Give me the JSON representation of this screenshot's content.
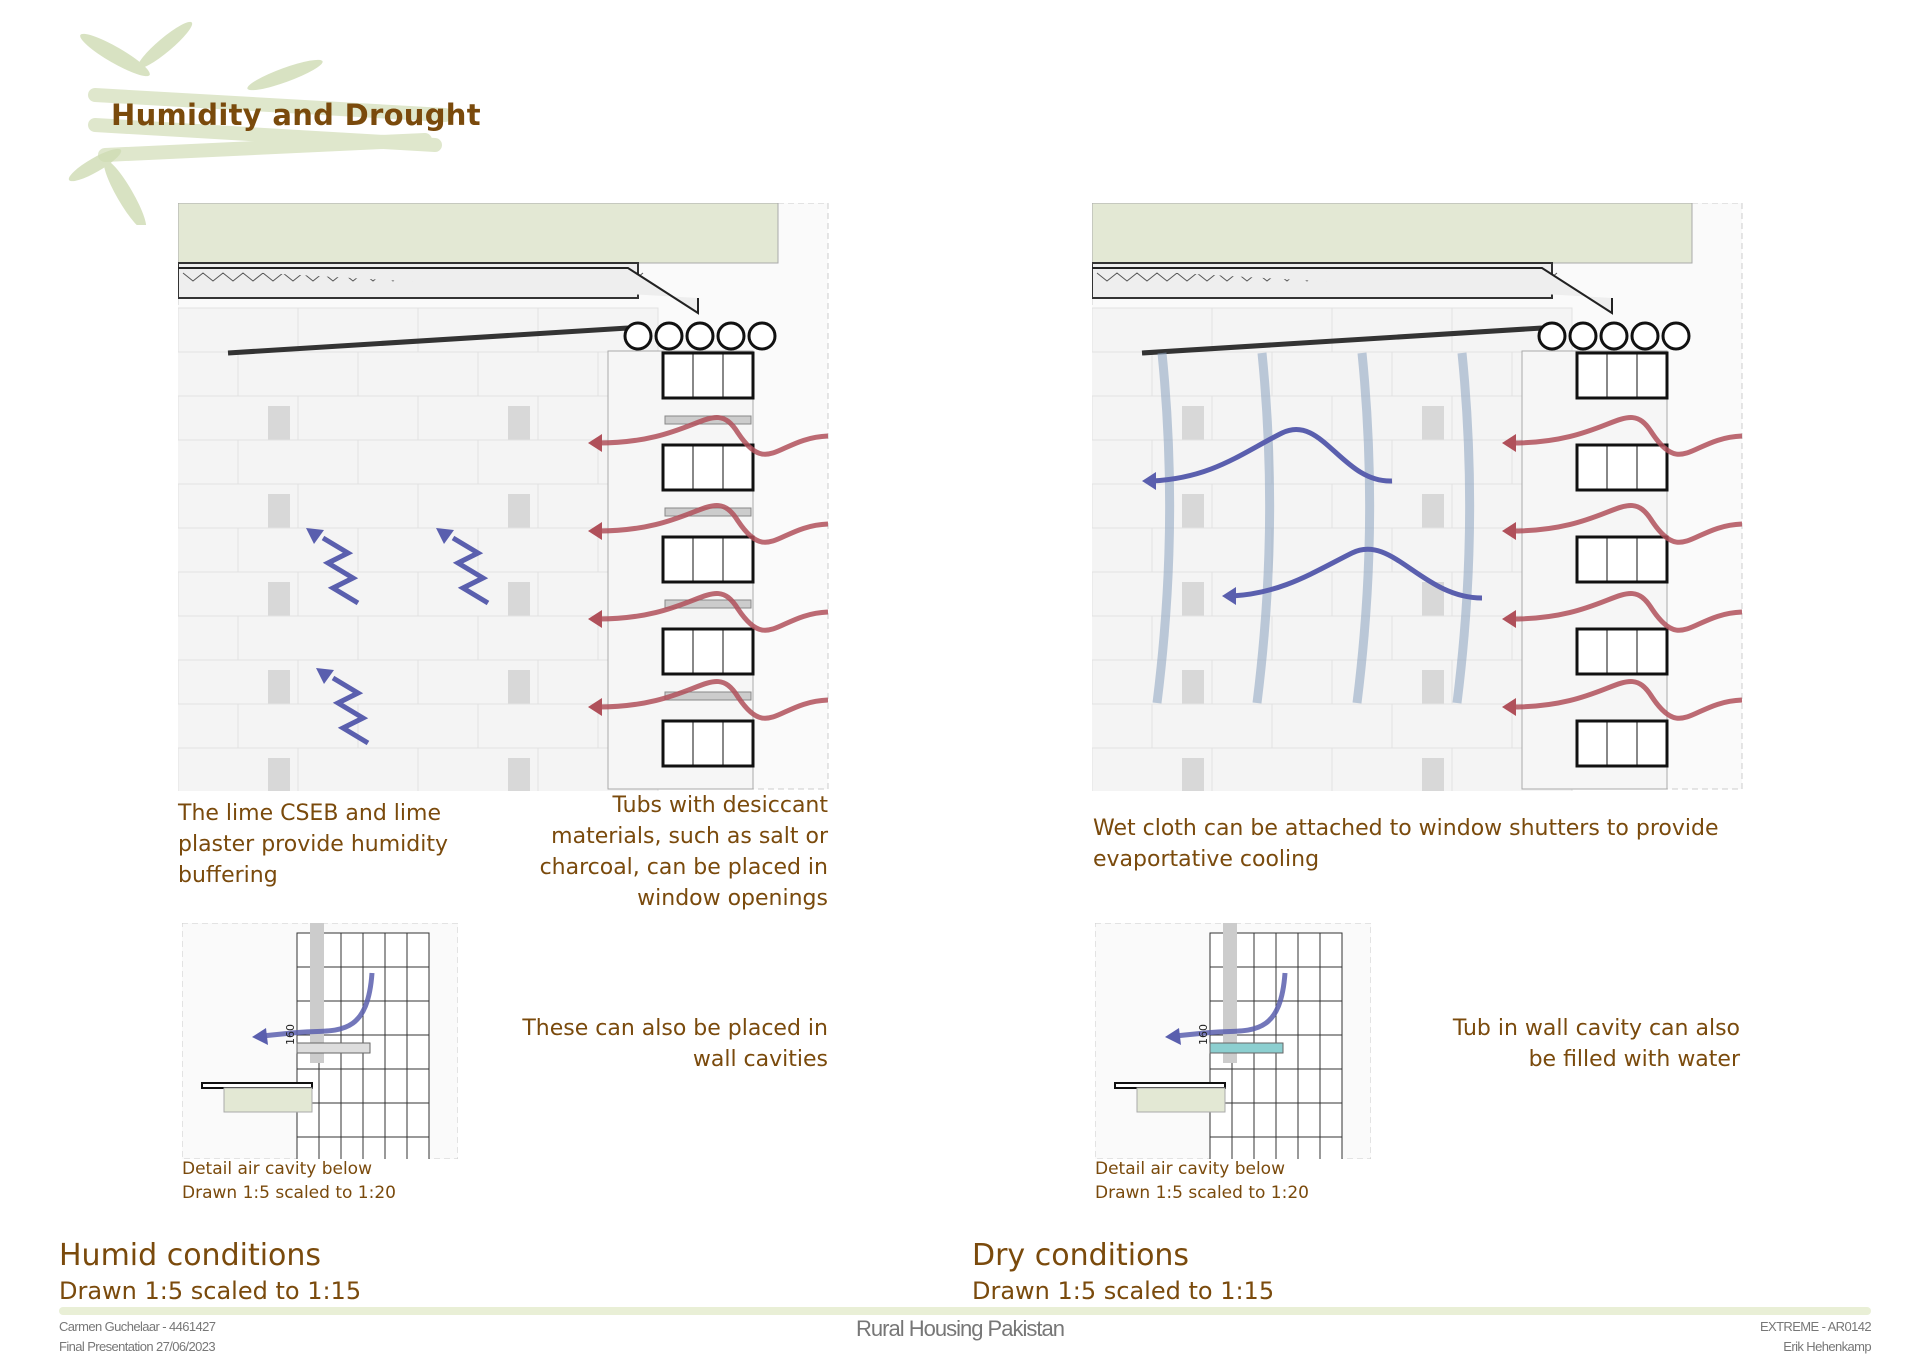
{
  "title": "Humidity and Drought",
  "humid": {
    "caption_left": "The lime CSEB and lime plaster provide humidity buffering",
    "caption_right": "Tubs with desiccant materials, such as salt or charcoal, can be placed in window openings",
    "detail_note": "These can also be placed in wall cavities",
    "detail_label": "Detail air cavity below",
    "detail_scale": "Drawn 1:5 scaled to 1:20",
    "dimension": "160",
    "heading": "Humid conditions",
    "scale": "Drawn 1:5 scaled to 1:15"
  },
  "dry": {
    "caption": "Wet cloth can be attached to window shutters to provide evaportative cooling",
    "detail_note": "Tub in wall cavity can also be filled with water",
    "detail_label": "Detail air cavity below",
    "detail_scale": "Drawn 1:5 scaled to 1:20",
    "dimension": "160",
    "heading": "Dry conditions",
    "scale": "Drawn 1:5 scaled to 1:15"
  },
  "footer": {
    "author": "Carmen Guchelaar - 4461427",
    "date": "Final Presentation 27/06/2023",
    "project": "Rural Housing Pakistan",
    "course": "EXTREME - AR0142",
    "tutor": "Erik Hehenkamp"
  },
  "colors": {
    "text": "#7a4a0c",
    "warm_arrow": "#b0505a",
    "humid_arrow": "#5a5fae",
    "roof": "#e3e8d4",
    "footer_bar": "#e9efd6"
  }
}
